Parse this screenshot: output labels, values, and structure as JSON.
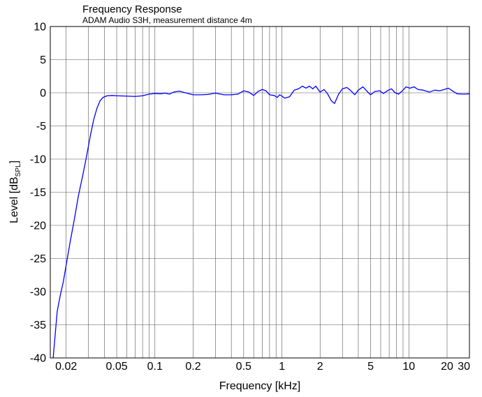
{
  "chart_data": {
    "type": "line",
    "title": "Frequency Response",
    "subtitle": "ADAM Audio S3H, measurement distance 4m",
    "xlabel": "Frequency [kHz]",
    "ylabel_main": "Level [dB",
    "ylabel_sub": "SPL",
    "ylabel_close": "]",
    "xscale": "log",
    "xlim": [
      0.015,
      30
    ],
    "ylim": [
      -40,
      10
    ],
    "grid": true,
    "x_ticks": [
      {
        "v": 0.02,
        "label": "0.02"
      },
      {
        "v": 0.05,
        "label": "0.05"
      },
      {
        "v": 0.1,
        "label": "0.1"
      },
      {
        "v": 0.2,
        "label": "0.2"
      },
      {
        "v": 0.5,
        "label": "0.5"
      },
      {
        "v": 1,
        "label": "1"
      },
      {
        "v": 2,
        "label": "2"
      },
      {
        "v": 5,
        "label": "5"
      },
      {
        "v": 10,
        "label": "10"
      },
      {
        "v": 20,
        "label": "20"
      },
      {
        "v": 30,
        "label": "30"
      }
    ],
    "x_minor_grid": [
      0.03,
      0.04,
      0.06,
      0.07,
      0.08,
      0.09,
      0.3,
      0.4,
      0.6,
      0.7,
      0.8,
      0.9,
      3,
      4,
      6,
      7,
      8,
      9
    ],
    "y_ticks": [
      10,
      5,
      0,
      -5,
      -10,
      -15,
      -20,
      -25,
      -30,
      -35,
      -40
    ],
    "series": [
      {
        "color": "#0000ff",
        "points": [
          [
            0.0158,
            -40
          ],
          [
            0.017,
            -33
          ],
          [
            0.018,
            -30.5
          ],
          [
            0.019,
            -28.5
          ],
          [
            0.02,
            -26
          ],
          [
            0.0215,
            -22.5
          ],
          [
            0.023,
            -19.5
          ],
          [
            0.025,
            -15.5
          ],
          [
            0.027,
            -12.5
          ],
          [
            0.029,
            -9.5
          ],
          [
            0.031,
            -6.5
          ],
          [
            0.033,
            -4
          ],
          [
            0.035,
            -2.3
          ],
          [
            0.037,
            -1.2
          ],
          [
            0.039,
            -0.7
          ],
          [
            0.042,
            -0.45
          ],
          [
            0.046,
            -0.4
          ],
          [
            0.05,
            -0.45
          ],
          [
            0.06,
            -0.5
          ],
          [
            0.07,
            -0.55
          ],
          [
            0.08,
            -0.45
          ],
          [
            0.09,
            -0.2
          ],
          [
            0.1,
            -0.1
          ],
          [
            0.11,
            -0.15
          ],
          [
            0.12,
            -0.05
          ],
          [
            0.13,
            -0.2
          ],
          [
            0.14,
            0.1
          ],
          [
            0.155,
            0.25
          ],
          [
            0.17,
            0.05
          ],
          [
            0.2,
            -0.3
          ],
          [
            0.23,
            -0.3
          ],
          [
            0.26,
            -0.25
          ],
          [
            0.3,
            -0.05
          ],
          [
            0.35,
            -0.3
          ],
          [
            0.4,
            -0.3
          ],
          [
            0.45,
            -0.2
          ],
          [
            0.5,
            0.3
          ],
          [
            0.55,
            0.1
          ],
          [
            0.6,
            -0.4
          ],
          [
            0.65,
            0.2
          ],
          [
            0.7,
            0.5
          ],
          [
            0.75,
            0.3
          ],
          [
            0.8,
            -0.3
          ],
          [
            0.87,
            -0.4
          ],
          [
            0.92,
            -0.7
          ],
          [
            0.96,
            -0.3
          ],
          [
            1.0,
            -0.5
          ],
          [
            1.05,
            -0.8
          ],
          [
            1.15,
            -0.6
          ],
          [
            1.25,
            0.4
          ],
          [
            1.35,
            0.6
          ],
          [
            1.45,
            1.0
          ],
          [
            1.55,
            0.7
          ],
          [
            1.65,
            1.0
          ],
          [
            1.75,
            0.6
          ],
          [
            1.85,
            1.0
          ],
          [
            2.0,
            0.1
          ],
          [
            2.15,
            0.5
          ],
          [
            2.3,
            -0.2
          ],
          [
            2.45,
            -1.2
          ],
          [
            2.6,
            -1.6
          ],
          [
            2.8,
            -0.2
          ],
          [
            3.0,
            0.6
          ],
          [
            3.25,
            0.8
          ],
          [
            3.5,
            0.3
          ],
          [
            3.75,
            -0.3
          ],
          [
            4.0,
            0.4
          ],
          [
            4.35,
            0.9
          ],
          [
            4.7,
            0.2
          ],
          [
            5.0,
            -0.3
          ],
          [
            5.4,
            0.2
          ],
          [
            5.9,
            0.3
          ],
          [
            6.3,
            -0.1
          ],
          [
            6.9,
            0.4
          ],
          [
            7.3,
            0.6
          ],
          [
            7.8,
            0.0
          ],
          [
            8.3,
            -0.2
          ],
          [
            8.9,
            0.3
          ],
          [
            9.5,
            0.9
          ],
          [
            10.2,
            0.7
          ],
          [
            11,
            0.9
          ],
          [
            11.8,
            0.5
          ],
          [
            13,
            0.4
          ],
          [
            14.5,
            0.1
          ],
          [
            16,
            0.4
          ],
          [
            17.5,
            0.3
          ],
          [
            19,
            0.5
          ],
          [
            20.5,
            0.7
          ],
          [
            22,
            0.3
          ],
          [
            24,
            -0.15
          ],
          [
            27,
            -0.2
          ],
          [
            30,
            -0.15
          ]
        ]
      }
    ]
  }
}
